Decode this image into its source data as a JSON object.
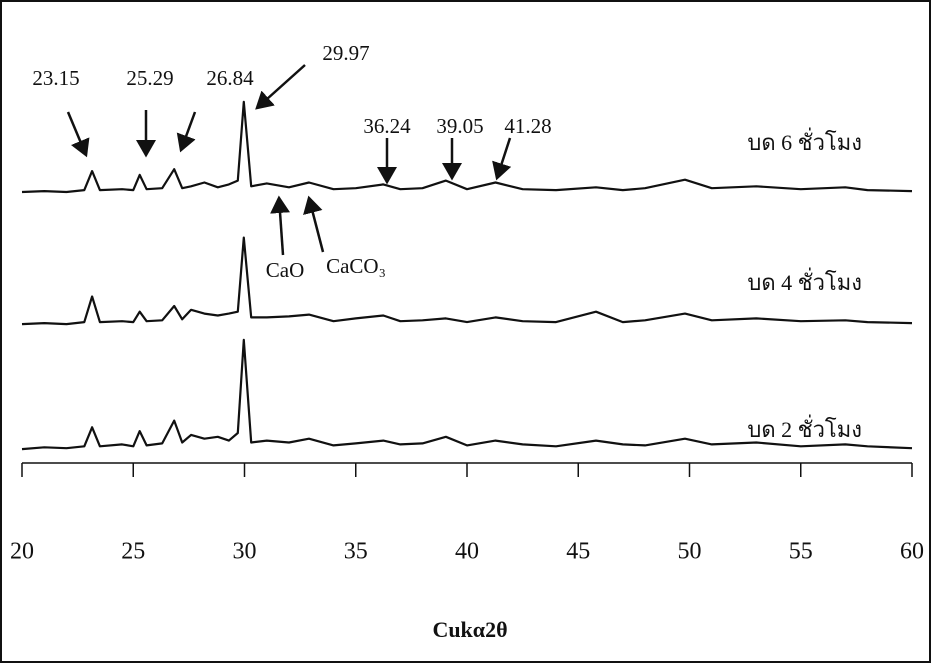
{
  "chart_data": {
    "type": "line",
    "xlabel": "Cukα2θ",
    "xlim": [
      20,
      60
    ],
    "xticks": [
      20,
      25,
      30,
      35,
      40,
      45,
      50,
      55,
      60
    ],
    "x": [
      20,
      21,
      22,
      22.8,
      23.15,
      23.5,
      24.5,
      25.0,
      25.29,
      25.6,
      26.3,
      26.84,
      27.2,
      27.6,
      28.2,
      28.8,
      29.3,
      29.7,
      29.97,
      30.3,
      31,
      32,
      32.9,
      34,
      35,
      36.24,
      37,
      38,
      39.05,
      40,
      41.28,
      42.5,
      44,
      45.8,
      47,
      48,
      49.8,
      51,
      53,
      55,
      57,
      58,
      60
    ],
    "series": [
      {
        "name": "บด 6 ชั่วโมง",
        "color": "#111111",
        "values": [
          0,
          1,
          0,
          2,
          22,
          2,
          3,
          2,
          18,
          3,
          4,
          24,
          4,
          6,
          10,
          5,
          8,
          12,
          95,
          6,
          9,
          5,
          10,
          3,
          4,
          8,
          3,
          4,
          12,
          3,
          10,
          3,
          2,
          5,
          2,
          4,
          13,
          4,
          6,
          3,
          5,
          2,
          1
        ]
      },
      {
        "name": "บด 4 ชั่วโมง",
        "color": "#111111",
        "values": [
          1,
          2,
          1,
          3,
          30,
          3,
          4,
          3,
          14,
          4,
          5,
          20,
          6,
          16,
          12,
          10,
          12,
          14,
          92,
          8,
          8,
          9,
          11,
          4,
          7,
          10,
          4,
          5,
          7,
          3,
          8,
          4,
          3,
          14,
          3,
          5,
          12,
          5,
          7,
          4,
          5,
          3,
          2
        ]
      },
      {
        "name": "บด 2 ชั่วโมง",
        "color": "#111111",
        "values": [
          3,
          5,
          4,
          6,
          26,
          6,
          8,
          6,
          22,
          7,
          9,
          33,
          10,
          18,
          14,
          16,
          12,
          20,
          118,
          10,
          12,
          10,
          14,
          7,
          9,
          12,
          8,
          9,
          16,
          7,
          12,
          8,
          6,
          12,
          8,
          7,
          14,
          8,
          10,
          6,
          8,
          6,
          4
        ]
      }
    ],
    "annotations": [
      "23.15",
      "25.29",
      "26.84",
      "29.97",
      "36.24",
      "39.05",
      "41.28",
      "CaO",
      "CaCO₃"
    ]
  }
}
